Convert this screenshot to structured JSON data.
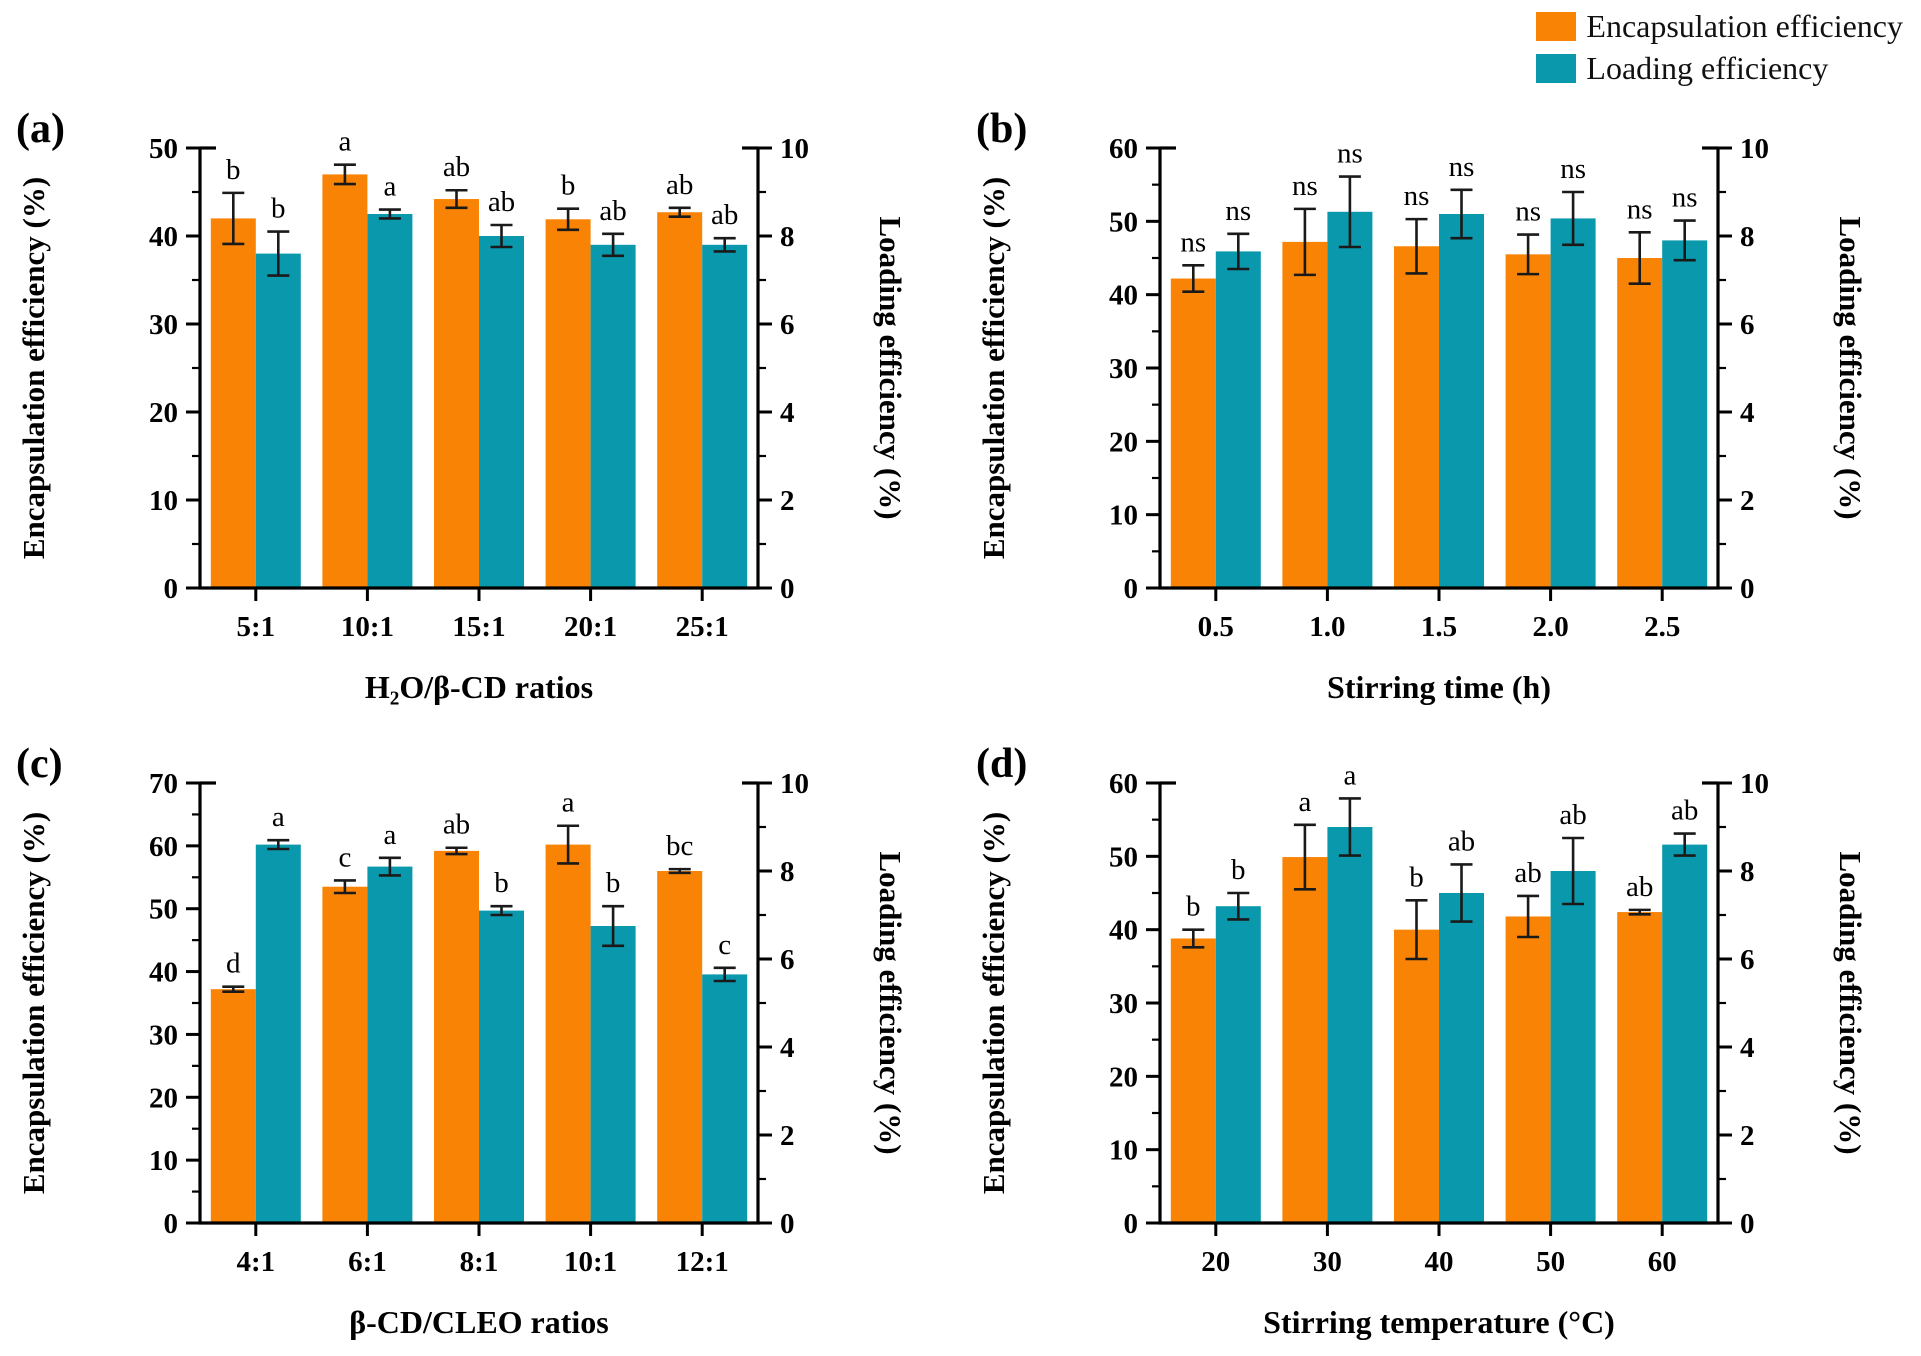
{
  "legend": {
    "items": [
      {
        "label": "Encapsulation efficiency",
        "color": "#F98304"
      },
      {
        "label": "Loading efficiency",
        "color": "#0A99AC"
      }
    ]
  },
  "colors": {
    "encapsulation": "#F98304",
    "loading": "#0A99AC",
    "axis": "#000000",
    "error_bar": "#1a1a1a"
  },
  "chart_data": [
    {
      "panel_label": "(a)",
      "type": "bar",
      "categories": [
        "5:1",
        "10:1",
        "15:1",
        "20:1",
        "25:1"
      ],
      "xlabel": "H₂O/β-CD ratios",
      "left_axis": {
        "label": "Encapsulation efficiency (%)",
        "min": 0,
        "max": 50,
        "major_step": 10,
        "minor_step": 5
      },
      "right_axis": {
        "label": "Loading efficiency (%)",
        "min": 0,
        "max": 10,
        "major_step": 2,
        "minor_step": 1
      },
      "series": [
        {
          "name": "Encapsulation efficiency",
          "axis": "left",
          "color": "#F98304",
          "values": [
            42.0,
            47.0,
            44.2,
            41.9,
            42.7
          ],
          "errors": [
            2.9,
            1.1,
            1.0,
            1.2,
            0.5
          ],
          "sig_labels": [
            "b",
            "a",
            "ab",
            "b",
            "ab"
          ]
        },
        {
          "name": "Loading efficiency",
          "axis": "right",
          "color": "#0A99AC",
          "values": [
            7.6,
            8.5,
            8.0,
            7.8,
            7.8
          ],
          "errors": [
            0.5,
            0.1,
            0.25,
            0.25,
            0.15
          ],
          "sig_labels": [
            "b",
            "a",
            "ab",
            "ab",
            "ab"
          ]
        }
      ]
    },
    {
      "panel_label": "(b)",
      "type": "bar",
      "categories": [
        "0.5",
        "1.0",
        "1.5",
        "2.0",
        "2.5"
      ],
      "xlabel": "Stirring time (h)",
      "left_axis": {
        "label": "Encapsulation efficiency (%)",
        "min": 0,
        "max": 60,
        "major_step": 10,
        "minor_step": 5
      },
      "right_axis": {
        "label": "Loading efficiency (%)",
        "min": 0,
        "max": 10,
        "major_step": 2,
        "minor_step": 1
      },
      "series": [
        {
          "name": "Encapsulation efficiency",
          "axis": "left",
          "color": "#F98304",
          "values": [
            42.2,
            47.2,
            46.6,
            45.5,
            45.0
          ],
          "errors": [
            1.8,
            4.5,
            3.7,
            2.7,
            3.5
          ],
          "sig_labels": [
            "ns",
            "ns",
            "ns",
            "ns",
            "ns"
          ]
        },
        {
          "name": "Loading efficiency",
          "axis": "right",
          "color": "#0A99AC",
          "values": [
            7.65,
            8.55,
            8.5,
            8.4,
            7.9
          ],
          "errors": [
            0.4,
            0.8,
            0.55,
            0.6,
            0.45
          ],
          "sig_labels": [
            "ns",
            "ns",
            "ns",
            "ns",
            "ns"
          ]
        }
      ]
    },
    {
      "panel_label": "(c)",
      "type": "bar",
      "categories": [
        "4:1",
        "6:1",
        "8:1",
        "10:1",
        "12:1"
      ],
      "xlabel": "β-CD/CLEO ratios",
      "left_axis": {
        "label": "Encapsulation efficiency (%)",
        "min": 0,
        "max": 70,
        "major_step": 10,
        "minor_step": 5
      },
      "right_axis": {
        "label": "Loading efficiency (%)",
        "min": 0,
        "max": 10,
        "major_step": 2,
        "minor_step": 1
      },
      "series": [
        {
          "name": "Encapsulation efficiency",
          "axis": "left",
          "color": "#F98304",
          "values": [
            37.2,
            53.5,
            59.2,
            60.2,
            56.0
          ],
          "errors": [
            0.4,
            1.0,
            0.5,
            3.0,
            0.3
          ],
          "sig_labels": [
            "d",
            "c",
            "ab",
            "a",
            "bc"
          ]
        },
        {
          "name": "Loading efficiency",
          "axis": "right",
          "color": "#0A99AC",
          "values": [
            8.6,
            8.1,
            7.1,
            6.75,
            5.65
          ],
          "errors": [
            0.1,
            0.2,
            0.1,
            0.45,
            0.15
          ],
          "sig_labels": [
            "a",
            "a",
            "b",
            "b",
            "c"
          ]
        }
      ]
    },
    {
      "panel_label": "(d)",
      "type": "bar",
      "categories": [
        "20",
        "30",
        "40",
        "50",
        "60"
      ],
      "xlabel": "Stirring temperature (°C)",
      "left_axis": {
        "label": "Encapsulation efficiency (%)",
        "min": 0,
        "max": 60,
        "major_step": 10,
        "minor_step": 5
      },
      "right_axis": {
        "label": "Loading efficiency (%)",
        "min": 0,
        "max": 10,
        "major_step": 2,
        "minor_step": 1
      },
      "series": [
        {
          "name": "Encapsulation efficiency",
          "axis": "left",
          "color": "#F98304",
          "values": [
            38.8,
            49.9,
            40.0,
            41.8,
            42.4
          ],
          "errors": [
            1.2,
            4.4,
            4.0,
            2.8,
            0.3
          ],
          "sig_labels": [
            "b",
            "a",
            "b",
            "ab",
            "ab"
          ]
        },
        {
          "name": "Loading efficiency",
          "axis": "right",
          "color": "#0A99AC",
          "values": [
            7.2,
            9.0,
            7.5,
            8.0,
            8.6
          ],
          "errors": [
            0.3,
            0.65,
            0.65,
            0.75,
            0.25
          ],
          "sig_labels": [
            "b",
            "a",
            "ab",
            "ab",
            "ab"
          ]
        }
      ]
    }
  ]
}
